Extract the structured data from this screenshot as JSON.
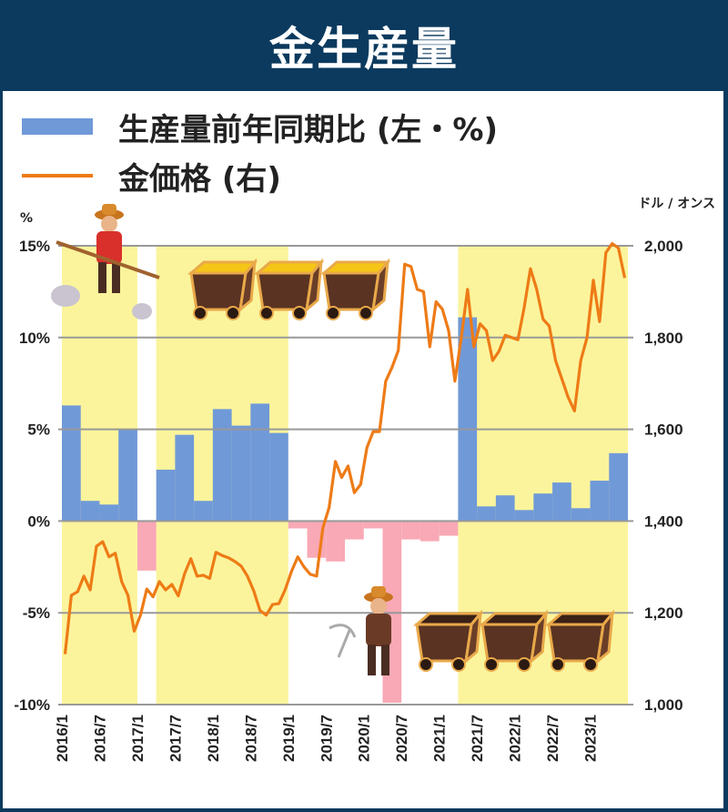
{
  "header": {
    "title": "金生産量"
  },
  "legend": [
    {
      "label": "生産量前年同期比 (左・%)",
      "type": "bar",
      "color": "#7099d8"
    },
    {
      "label": "金価格 (右)",
      "type": "line",
      "color": "#ee7b16"
    }
  ],
  "chart_data": {
    "type": "bar+line",
    "title": "金生産量",
    "left_axis": {
      "unit": "%",
      "range": [
        -10,
        15
      ],
      "ticks": [
        "15%",
        "10%",
        "5%",
        "0%",
        "-5%",
        "-10%"
      ]
    },
    "right_axis": {
      "unit": "ドル / オンス",
      "range": [
        1000,
        2000
      ],
      "ticks": [
        "2,000",
        "1,800",
        "1,600",
        "1,400",
        "1,200",
        "1,000"
      ]
    },
    "x_ticks": [
      "2016/1",
      "2016/7",
      "2017/1",
      "2017/7",
      "2018/1",
      "2018/7",
      "2019/1",
      "2019/7",
      "2020/1",
      "2020/7",
      "2021/1",
      "2021/7",
      "2022/1",
      "2022/7",
      "2023/1"
    ],
    "grid": true,
    "colors": {
      "positive_bar": "#7099d8",
      "negative_bar": "#f8a9b5",
      "line": "#ee7b16",
      "highlight": "#fbf49c",
      "grid": "#999999"
    },
    "series": [
      {
        "name": "生産量前年同期比 (左・%)",
        "type": "bar",
        "frequency": "quarterly",
        "start": "2016/1",
        "values": [
          6.3,
          1.1,
          0.9,
          5.0,
          -2.7,
          2.8,
          4.7,
          1.1,
          6.1,
          5.2,
          6.4,
          4.8,
          -0.4,
          -2.0,
          -2.2,
          -1.0,
          -0.4,
          -9.9,
          -1.0,
          -1.1,
          -0.8,
          11.1,
          0.8,
          1.4,
          0.6,
          1.5,
          2.1,
          0.7,
          2.2,
          3.7
        ]
      },
      {
        "name": "金価格 (右)",
        "type": "line",
        "frequency": "monthly",
        "start": "2016/1",
        "values": [
          1110,
          1238,
          1246,
          1280,
          1250,
          1345,
          1355,
          1322,
          1330,
          1268,
          1238,
          1160,
          1195,
          1252,
          1235,
          1268,
          1250,
          1262,
          1237,
          1285,
          1318,
          1280,
          1282,
          1275,
          1332,
          1325,
          1320,
          1312,
          1302,
          1280,
          1248,
          1205,
          1195,
          1218,
          1220,
          1250,
          1290,
          1322,
          1300,
          1284,
          1280,
          1385,
          1430,
          1530,
          1495,
          1520,
          1462,
          1480,
          1560,
          1595,
          1595,
          1705,
          1735,
          1772,
          1960,
          1955,
          1905,
          1900,
          1780,
          1878,
          1862,
          1815,
          1705,
          1800,
          1905,
          1780,
          1830,
          1815,
          1750,
          1770,
          1805,
          1800,
          1795,
          1865,
          1950,
          1905,
          1840,
          1825,
          1750,
          1710,
          1670,
          1640,
          1750,
          1800,
          1925,
          1835,
          1985,
          2005,
          1995,
          1930
        ]
      }
    ],
    "highlight_periods": [
      "2016/1-2016/12",
      "2017/4-2018/12",
      "2021/4-2023/6"
    ]
  }
}
